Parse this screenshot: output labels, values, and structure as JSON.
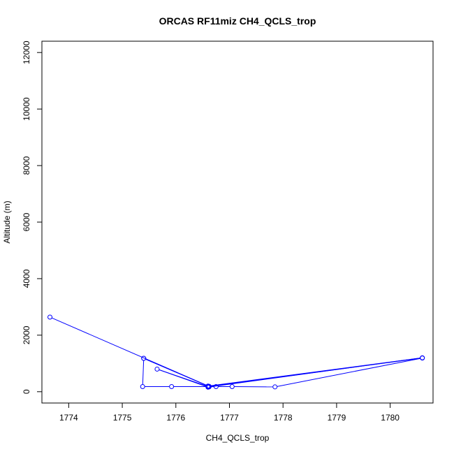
{
  "chart_data": {
    "type": "line",
    "title": "ORCAS RF11miz CH4_QCLS_trop",
    "xlabel": "CH4_QCLS_trop",
    "ylabel": "Altitude (m)",
    "xlim": [
      1773.5,
      1780.8
    ],
    "ylim": [
      -400,
      12400
    ],
    "xticks": [
      1774,
      1775,
      1776,
      1777,
      1778,
      1779,
      1780
    ],
    "yticks": [
      0,
      2000,
      4000,
      6000,
      8000,
      10000,
      12000
    ],
    "grid": false,
    "legend": "none",
    "series": [
      {
        "color": "#0000ff",
        "marker": "open-circle",
        "points": [
          {
            "x": 1773.65,
            "y": 2640
          },
          {
            "x": 1776.62,
            "y": 190
          },
          {
            "x": 1775.4,
            "y": 1180
          },
          {
            "x": 1776.6,
            "y": 200
          },
          {
            "x": 1780.6,
            "y": 1200
          },
          {
            "x": 1776.6,
            "y": 160
          },
          {
            "x": 1775.65,
            "y": 800
          },
          {
            "x": 1776.62,
            "y": 170
          },
          {
            "x": 1776.75,
            "y": 180
          },
          {
            "x": 1777.05,
            "y": 180
          },
          {
            "x": 1777.85,
            "y": 170
          },
          {
            "x": 1780.6,
            "y": 1190
          },
          {
            "x": 1776.6,
            "y": 180
          },
          {
            "x": 1775.92,
            "y": 180
          },
          {
            "x": 1775.38,
            "y": 180
          },
          {
            "x": 1775.4,
            "y": 1180
          }
        ]
      }
    ]
  }
}
